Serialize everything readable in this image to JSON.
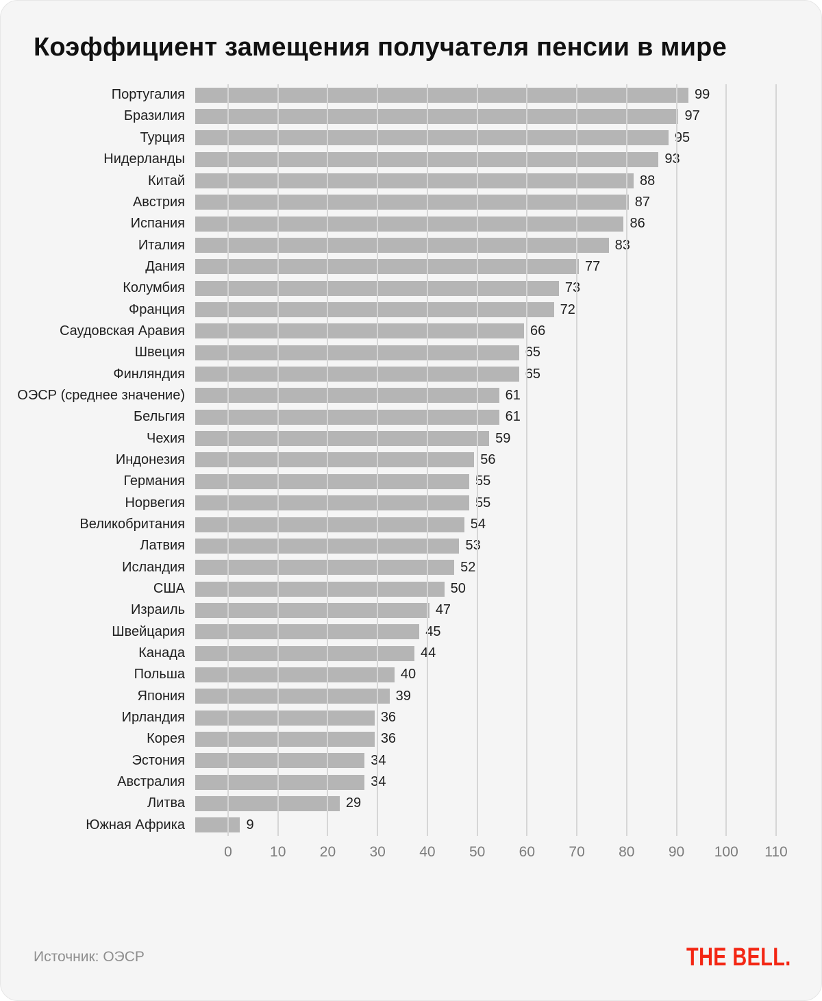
{
  "title": "Коэффициент замещения получателя пенсии в мире",
  "source": "Источник: ОЭСР",
  "brand": "THE BELL.",
  "colors": {
    "page_background": "#ffffff",
    "card_background": "#f5f5f5",
    "bar": "#b5b5b5",
    "gridline": "#d6d6d6",
    "title_text": "#111111",
    "label_text": "#1f1f1f",
    "value_text": "#1f1f1f",
    "tick_text": "#7c7c7c",
    "source_text": "#8e8e8e",
    "brand_red": "#f32613"
  },
  "chart_data": {
    "type": "bar",
    "orientation": "horizontal",
    "title": "Коэффициент замещения получателя пенсии в мире",
    "categories": [
      "Португалия",
      "Бразилия",
      "Турция",
      "Нидерланды",
      "Китай",
      "Австрия",
      "Испания",
      "Италия",
      "Дания",
      "Колумбия",
      "Франция",
      "Саудовская Аравия",
      "Швеция",
      "Финляндия",
      "ОЭСР (среднее значение)",
      "Бельгия",
      "Чехия",
      "Индонезия",
      "Германия",
      "Норвегия",
      "Великобритания",
      "Латвия",
      "Исландия",
      "США",
      "Израиль",
      "Швейцария",
      "Канада",
      "Польша",
      "Япония",
      "Ирландия",
      "Корея",
      "Эстония",
      "Австралия",
      "Литва",
      "Южная Африка"
    ],
    "values": [
      99,
      97,
      95,
      93,
      88,
      87,
      86,
      83,
      77,
      73,
      72,
      66,
      65,
      65,
      61,
      61,
      59,
      56,
      55,
      55,
      54,
      53,
      52,
      50,
      47,
      45,
      44,
      40,
      39,
      36,
      36,
      34,
      34,
      29,
      9
    ],
    "xlim": [
      0,
      110
    ],
    "x_ticks": [
      0,
      10,
      20,
      30,
      40,
      50,
      60,
      70,
      80,
      90,
      100,
      110
    ],
    "grid": true,
    "legend": false,
    "xlabel": "",
    "ylabel": ""
  }
}
